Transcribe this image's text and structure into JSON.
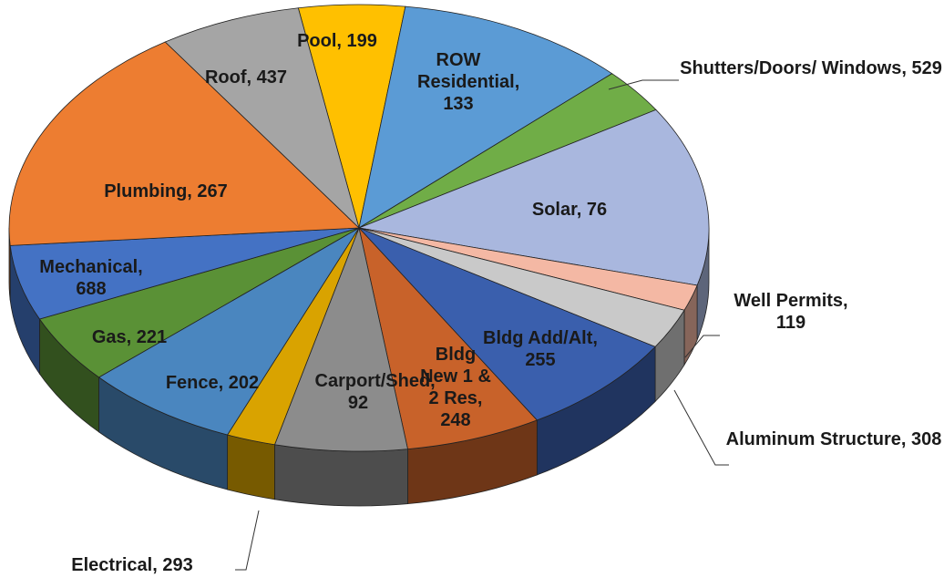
{
  "chart_data": {
    "type": "pie3d",
    "labels": [
      "Pool, 199",
      "Roof, 437",
      "ROW Residential, 133",
      "Shutters/Doors/ Windows, 529",
      "Solar, 76",
      "Well Permits, 119",
      "Aluminum Structure, 308",
      "Bldg Add/Alt, 255",
      "Bldg New 1 & 2 Res, 248",
      "Carport/Shed, 92",
      "Electrical, 293",
      "Fence, 202",
      "Gas, 221",
      "Mechanical, 688",
      "Plumbing, 267"
    ],
    "values": [
      199,
      437,
      133,
      529,
      76,
      119,
      308,
      255,
      248,
      92,
      293,
      202,
      221,
      688,
      267
    ],
    "colors": [
      "#ffc000",
      "#5b9bd5",
      "#70ad47",
      "#a9b7de",
      "#f4b8a4",
      "#c9c9c9",
      "#3a5fad",
      "#c8622a",
      "#8c8c8c",
      "#d9a300",
      "#4a86bf",
      "#5a9136",
      "#4472c4",
      "#ed7d31",
      "#a5a5a5"
    ]
  }
}
